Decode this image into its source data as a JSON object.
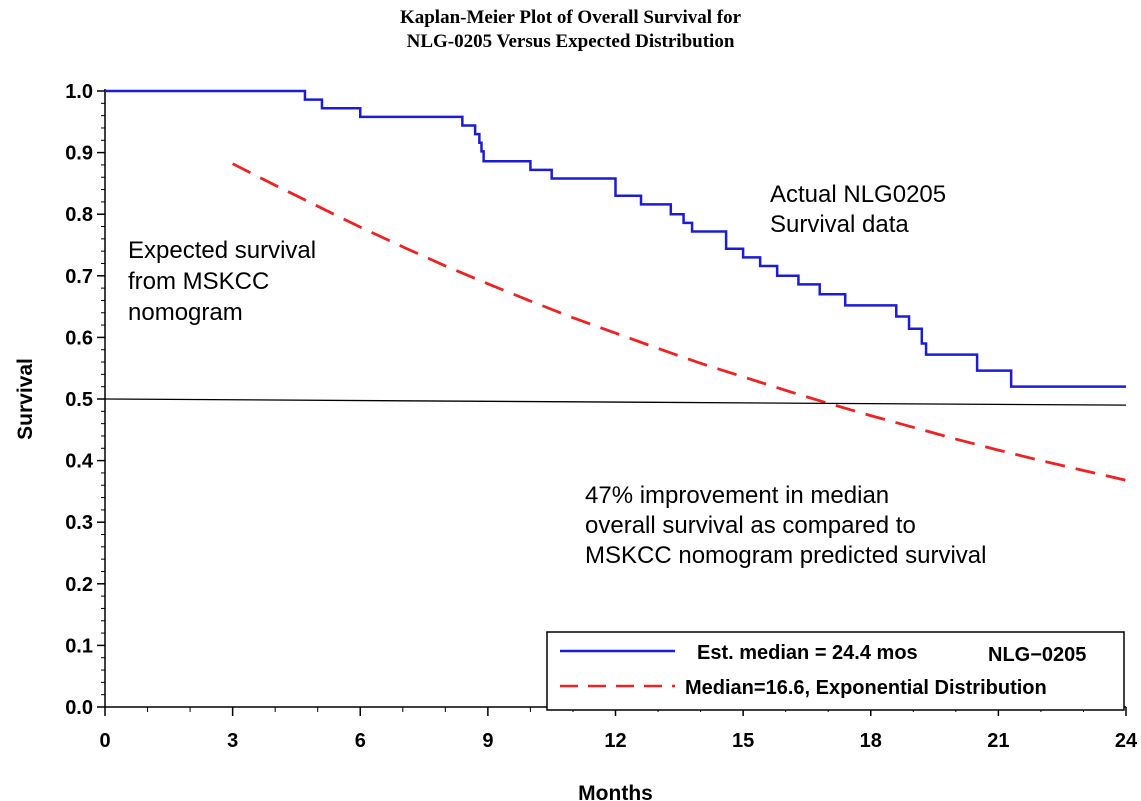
{
  "chart_data": {
    "type": "line",
    "title": "Kaplan-Meier Plot of Overall Survival for NLG-0205 Versus Expected Distribution",
    "title_lines": [
      "Kaplan-Meier Plot of Overall Survival for",
      "NLG-0205 Versus Expected Distribution"
    ],
    "xlabel": "Months",
    "ylabel": "Survival",
    "xlim": [
      0,
      24
    ],
    "ylim": [
      0,
      1
    ],
    "x_ticks": [
      0,
      3,
      6,
      9,
      12,
      15,
      18,
      21,
      24
    ],
    "y_ticks": [
      0.0,
      0.1,
      0.2,
      0.3,
      0.4,
      0.5,
      0.6,
      0.7,
      0.8,
      0.9,
      1.0
    ],
    "y_tick_labels": [
      "0.0",
      "0.1",
      "0.2",
      "0.3",
      "0.4",
      "0.5",
      "0.6",
      "0.7",
      "0.8",
      "0.9",
      "1.0"
    ],
    "grid": false,
    "legend_position": "bottom-right",
    "series": [
      {
        "name": "Est. median = 24.4 mos",
        "legend_suffix": "NLG−0205",
        "style": "step",
        "color": "#1c1cd6",
        "x": [
          0,
          4.7,
          5.1,
          6.0,
          8.4,
          8.7,
          8.8,
          8.85,
          8.9,
          9.0,
          10.0,
          10.5,
          12.0,
          12.6,
          13.3,
          13.6,
          13.8,
          14.6,
          15.0,
          15.4,
          15.8,
          16.3,
          16.8,
          17.4,
          18.6,
          18.9,
          19.2,
          19.3,
          20.5,
          21.3,
          24.0
        ],
        "y": [
          1.0,
          0.986,
          0.972,
          0.958,
          0.944,
          0.93,
          0.916,
          0.902,
          0.886,
          0.886,
          0.872,
          0.858,
          0.83,
          0.816,
          0.8,
          0.786,
          0.772,
          0.744,
          0.73,
          0.716,
          0.7,
          0.686,
          0.67,
          0.652,
          0.634,
          0.614,
          0.59,
          0.572,
          0.546,
          0.52,
          0.52
        ]
      },
      {
        "name": "Median=16.6, Exponential Distribution",
        "style": "dashed",
        "color": "#ee2222",
        "x": [
          3,
          4,
          5,
          6,
          7,
          8,
          9,
          10,
          11,
          12,
          13,
          14,
          15,
          16,
          17,
          18,
          19,
          20,
          21,
          22,
          23,
          24
        ],
        "y": [
          0.882,
          0.847,
          0.813,
          0.779,
          0.747,
          0.716,
          0.687,
          0.659,
          0.632,
          0.607,
          0.582,
          0.558,
          0.536,
          0.514,
          0.493,
          0.473,
          0.454,
          0.435,
          0.417,
          0.4,
          0.384,
          0.368
        ]
      },
      {
        "style": "reference",
        "color": "#000000",
        "x": [
          0,
          24
        ],
        "y": [
          0.5,
          0.49
        ]
      }
    ],
    "annotations": [
      {
        "lines": [
          "Actual NLG0205",
          "Survival data"
        ],
        "position": "upper-right"
      },
      {
        "lines": [
          "Expected survival",
          "from MSKCC",
          "nomogram"
        ],
        "position": "upper-left"
      },
      {
        "lines": [
          "47% improvement in median",
          "overall survival as compared to",
          "MSKCC nomogram predicted survival"
        ],
        "position": "lower-right"
      }
    ]
  }
}
